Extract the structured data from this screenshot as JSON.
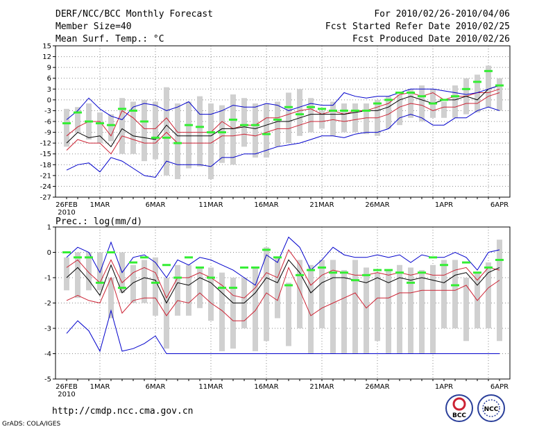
{
  "header": {
    "title": "DERF/NCC/BCC Monthly Forecast",
    "member_size": "Member Size=40",
    "variable": "Mean Surf. Temp.: °C",
    "period": "For 2010/02/26-2010/04/06",
    "started": "Fcst Started Refer Date 2010/02/25",
    "produced": "Fcst Produced Date 2010/02/26"
  },
  "footer": {
    "url": "http://cmdp.ncc.cma.gov.cn",
    "grads": "GrADS: COLA/IGES",
    "logo1_text": "BCC",
    "logo2_text": "NCC"
  },
  "colors": {
    "box": "#d0d0d0",
    "median": "#000000",
    "quartile": "#cc2233",
    "extreme": "#0000cc",
    "mean": "#33ee33",
    "grid": "#888888"
  },
  "chart_data": [
    {
      "type": "box",
      "title": "Mean Surf. Temp.: °C",
      "ylim": [
        -27,
        15
      ],
      "yticks": [
        -27,
        -24,
        -21,
        -18,
        -15,
        -12,
        -9,
        -6,
        -3,
        0,
        3,
        6,
        9,
        12,
        15
      ],
      "x_tick_labels": [
        "26FEB",
        "1MAR",
        "6MAR",
        "11MAR",
        "16MAR",
        "21MAR",
        "26MAR",
        "1APR",
        "6APR"
      ],
      "x_sublabel": "2010",
      "n_days": 40,
      "box_high": [
        -2.5,
        -2,
        -1,
        -3.5,
        -4,
        0.5,
        -0.5,
        0,
        -0.5,
        3.5,
        -1,
        -0.5,
        1,
        -1,
        -1.5,
        1.5,
        0.5,
        -1,
        -1,
        -0.5,
        2,
        3,
        0.5,
        -3,
        -0.5,
        -1,
        -1,
        -1,
        0,
        1,
        1.5,
        3,
        4,
        3,
        -0.5,
        4,
        6,
        7,
        9.5,
        6
      ],
      "box_low": [
        -13,
        -9,
        -11,
        -12,
        -11.5,
        -15,
        -15,
        -17,
        -16.5,
        -21,
        -22,
        -19,
        -18.5,
        -22,
        -17.5,
        -18,
        -13,
        -16,
        -16,
        -13,
        -12,
        -10,
        -9,
        -8,
        -10,
        -9,
        -9,
        -9.5,
        -10,
        -8,
        -7,
        -5,
        -6,
        -5,
        -5,
        -5,
        -4,
        -3.5,
        -2,
        -3
      ],
      "max": [
        -5.5,
        -3,
        0.5,
        -2.5,
        -4.5,
        -5.5,
        -2,
        -1,
        -1.5,
        -3,
        -2,
        -0.5,
        -4,
        -4,
        -3,
        -1.5,
        -2,
        -2,
        -1,
        -1.5,
        -3,
        -2,
        -1,
        -1.5,
        -1.5,
        2,
        1,
        0.5,
        1,
        1,
        2,
        3,
        3,
        3,
        2.5,
        2,
        1.5,
        2,
        3,
        4
      ],
      "q75": [
        -10,
        -7.5,
        -6,
        -6,
        -10,
        -3,
        -5,
        -8,
        -8,
        -5,
        -9,
        -9,
        -9,
        -9,
        -6,
        -8,
        -7,
        -7,
        -5,
        -5,
        -4,
        -3,
        -2.5,
        -4,
        -3,
        -4,
        -3,
        -3,
        -2,
        -1,
        1.5,
        2,
        1,
        2,
        0,
        1,
        1,
        2,
        2,
        3
      ],
      "median": [
        -12,
        -9,
        -10.5,
        -10,
        -13,
        -8,
        -10,
        -10.5,
        -11,
        -7,
        -10,
        -10,
        -10,
        -10,
        -8,
        -8,
        -7.5,
        -8,
        -7,
        -6,
        -6,
        -5,
        -4,
        -4,
        -4,
        -4,
        -3.5,
        -3,
        -3,
        -2,
        0,
        1,
        0,
        -1,
        0,
        0,
        1,
        0,
        3,
        4
      ],
      "q25": [
        -14,
        -11,
        -12,
        -12,
        -15,
        -10,
        -11,
        -12,
        -12,
        -9,
        -12,
        -12,
        -12,
        -12,
        -10,
        -10,
        -9.5,
        -10,
        -9,
        -8,
        -8,
        -7,
        -6,
        -6,
        -5.5,
        -6,
        -5.5,
        -5,
        -5,
        -4,
        -2,
        -1,
        -1.5,
        -3,
        -2,
        -2,
        -1,
        -1,
        1,
        2
      ],
      "min": [
        -19.5,
        -18,
        -17.5,
        -20,
        -16,
        -17,
        -19,
        -21,
        -21.5,
        -17,
        -18,
        -18,
        -18,
        -18.5,
        -16,
        -16,
        -15,
        -15,
        -14,
        -13,
        -12.5,
        -12,
        -11,
        -10,
        -10,
        -10.5,
        -9.5,
        -9,
        -9,
        -8,
        -5,
        -4,
        -5,
        -7,
        -7,
        -5,
        -5,
        -3,
        -2,
        -3
      ],
      "mean": [
        -6.5,
        -3.5,
        -6,
        -6.5,
        -7,
        -2.5,
        -3,
        -6,
        -10.5,
        -10.5,
        -12,
        -7,
        -7.5,
        -9,
        -9,
        -5.5,
        -7,
        -7,
        -9.5,
        -5.5,
        -2,
        -4,
        -2,
        -2.5,
        -3,
        -3,
        -3,
        -3,
        -1,
        0,
        2,
        2,
        1,
        -1,
        0,
        1,
        3,
        5,
        8,
        4
      ],
      "series_note": "box spans ensemble spread; lines: max (blue), 75th/25th percentile (red), median (black), min (blue); green dash: ensemble mean"
    },
    {
      "type": "box",
      "title": "Prec.: log(mm/d)",
      "ylim": [
        -5,
        1
      ],
      "yticks": [
        -5,
        -4,
        -3,
        -2,
        -1,
        0,
        1
      ],
      "x_tick_labels": [
        "26FEB",
        "1MAR",
        "6MAR",
        "11MAR",
        "16MAR",
        "21MAR",
        "26MAR",
        "1APR",
        "6APR"
      ],
      "x_sublabel": "2010",
      "n_days": 40,
      "box_high": [
        -0.2,
        0,
        0,
        0,
        -1,
        0,
        -0.5,
        -0.3,
        -0.2,
        -1,
        -0.5,
        -0.5,
        -0.6,
        -0.6,
        -0.8,
        -1,
        -1,
        -0.6,
        0.2,
        -0.2,
        -1.2,
        -0.3,
        -0.5,
        -0.3,
        -0.3,
        -0.7,
        -0.3,
        -0.6,
        -0.8,
        -0.7,
        -0.5,
        -0.6,
        -0.7,
        -0.5,
        -0.3,
        -0.3,
        -1,
        -0.8,
        -0.4,
        0.5
      ],
      "box_low": [
        -1.5,
        -1.8,
        -1.5,
        -1.5,
        -2.6,
        -1.6,
        -2,
        -2,
        -2.5,
        -3.8,
        -2.5,
        -2.5,
        -2.2,
        -2.7,
        -3.9,
        -3.8,
        -3,
        -3.9,
        -3.5,
        -2.6,
        -3.7,
        -3,
        -4,
        -3,
        -4,
        -4,
        -4,
        -4,
        -3.5,
        -4,
        -4,
        -4,
        -4,
        -4,
        -3,
        -3,
        -3.5,
        -3,
        -3,
        -3.5
      ],
      "max": [
        -0.2,
        0.2,
        0,
        -0.8,
        0.4,
        -0.8,
        -0.2,
        -0.1,
        -0.4,
        -1,
        -0.3,
        -0.5,
        -0.2,
        -0.3,
        -0.5,
        -0.7,
        -1,
        -1.3,
        -0.1,
        -0.4,
        0.6,
        0.2,
        -0.7,
        -0.3,
        0.2,
        -0.1,
        -0.2,
        -0.2,
        -0.1,
        -0.2,
        -0.1,
        -0.4,
        -0.1,
        -0.2,
        -0.2,
        0,
        -0.2,
        -0.7,
        0,
        0.1
      ],
      "q75": [
        -0.6,
        -0.3,
        -0.8,
        -1.2,
        -0.3,
        -1.2,
        -0.8,
        -0.6,
        -0.8,
        -1.8,
        -1,
        -1,
        -0.8,
        -1,
        -1.3,
        -1.7,
        -1.8,
        -1.4,
        -0.8,
        -1,
        0.1,
        -0.5,
        -1.3,
        -0.9,
        -0.7,
        -0.8,
        -0.9,
        -0.9,
        -0.8,
        -0.9,
        -0.8,
        -0.9,
        -0.8,
        -0.9,
        -0.9,
        -0.7,
        -0.6,
        -1.1,
        -0.6,
        -0.7
      ],
      "median": [
        -1,
        -0.6,
        -1.1,
        -1.7,
        -0.5,
        -1.6,
        -1.2,
        -1,
        -1.1,
        -2,
        -1.2,
        -1.3,
        -1,
        -1.2,
        -1.6,
        -2,
        -2,
        -1.6,
        -1,
        -1.2,
        -0.3,
        -0.8,
        -1.6,
        -1.2,
        -1,
        -1,
        -1.1,
        -1.2,
        -1,
        -1.2,
        -1,
        -1.1,
        -1,
        -1.1,
        -1.2,
        -0.9,
        -0.8,
        -1.3,
        -0.8,
        -0.6
      ],
      "q25": [
        -1.9,
        -1.7,
        -1.9,
        -2,
        -1,
        -2.4,
        -1.9,
        -1.8,
        -1.8,
        -2.5,
        -1.9,
        -2,
        -1.6,
        -2,
        -2.3,
        -2.7,
        -2.7,
        -2.3,
        -1.6,
        -1.9,
        -0.6,
        -1.5,
        -2.5,
        -2.2,
        -2,
        -1.8,
        -1.6,
        -2.2,
        -1.8,
        -1.8,
        -1.6,
        -1.6,
        -1.5,
        -1.5,
        -1.5,
        -1.5,
        -1.3,
        -1.9,
        -1.4,
        -1.1
      ],
      "min": [
        -3.2,
        -2.7,
        -3.1,
        -3.9,
        -2.3,
        -3.9,
        -3.8,
        -3.6,
        -3.3,
        -4,
        -4,
        -4,
        -4,
        -4,
        -4,
        -4,
        -4,
        -4,
        -4,
        -4,
        -4,
        -4,
        -4,
        -4,
        -4,
        -4,
        -4,
        -4,
        -4,
        -4,
        -4,
        -4,
        -4,
        -4,
        -4,
        -4,
        -4,
        -4,
        -4,
        -4
      ],
      "mean": [
        0,
        -0.2,
        -0.2,
        -1.2,
        0,
        -1.4,
        -0.4,
        -0.2,
        -1.2,
        -0.5,
        -1,
        -0.2,
        -0.6,
        -1,
        -1.4,
        -1.4,
        -0.6,
        -0.6,
        0.1,
        -0.2,
        -1.3,
        -0.9,
        -0.7,
        -0.6,
        -0.8,
        -0.8,
        -1.1,
        -0.9,
        -0.7,
        -0.7,
        -0.8,
        -1.2,
        -0.8,
        -0.2,
        -0.5,
        -1.3,
        -0.4,
        -0.8,
        -0.6,
        -0.3
      ],
      "series_note": "box spans ensemble spread; lines: max (blue), 75th/25th percentile (red), median (black), min (blue); green dash: ensemble mean"
    }
  ]
}
